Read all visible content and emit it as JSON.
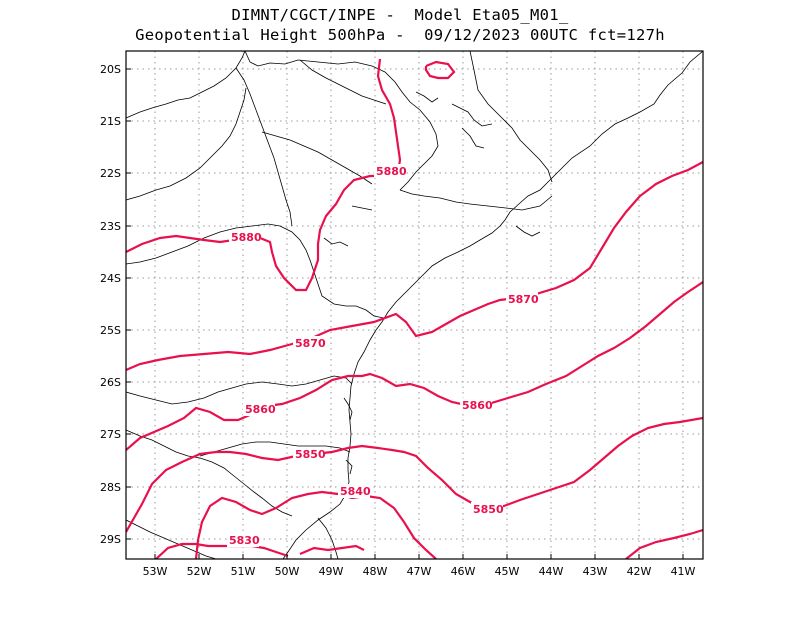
{
  "title": {
    "line1": "DIMNT/CGCT/INPE -  Model Eta05_M01_",
    "line2": "Geopotential Height 500hPa -  09/12/2023 00UTC fct=127h"
  },
  "axes": {
    "lat_labels": [
      "20S",
      "21S",
      "22S",
      "23S",
      "24S",
      "25S",
      "26S",
      "27S",
      "28S",
      "29S"
    ],
    "lon_labels": [
      "53W",
      "52W",
      "51W",
      "50W",
      "49W",
      "48W",
      "47W",
      "46W",
      "45W",
      "44W",
      "43W",
      "42W",
      "41W"
    ]
  },
  "contours": {
    "color": "#e8114d",
    "labels": [
      "5880",
      "5880",
      "5870",
      "5870",
      "5860",
      "5860",
      "5850",
      "5850",
      "5840",
      "5830"
    ]
  }
}
